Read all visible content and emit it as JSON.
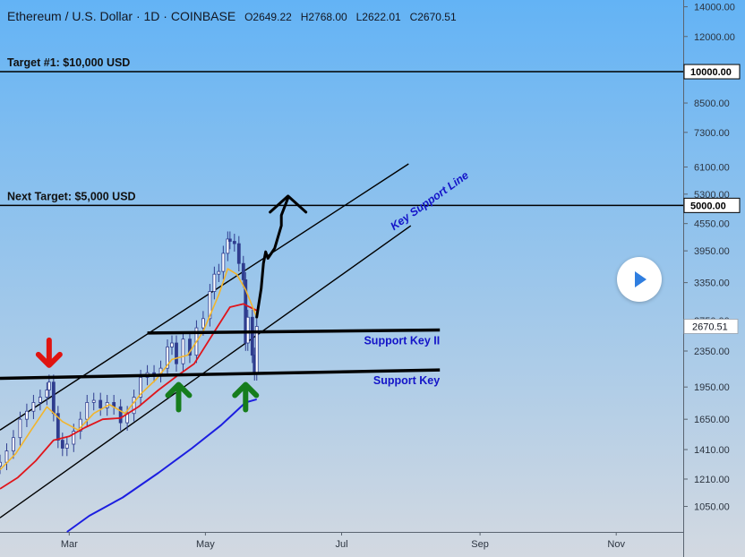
{
  "header": {
    "symbol": "Ethereum / U.S. Dollar · 1D · COINBASE",
    "open": "O2649.22",
    "high": "H2768.00",
    "low": "L2622.01",
    "close": "C2670.51"
  },
  "colors": {
    "background_top": "#63b3f5",
    "background_bottom": "#d3d9e1",
    "candle": "#2f3d8f",
    "candle_light": "#ffffff",
    "ma_fast": "#f2b52c",
    "ma_mid": "#e0151b",
    "ma_slow": "#1c1ee0",
    "annotation_blue": "#1414c8",
    "arrow_red": "#e01410",
    "arrow_green": "#167d1c",
    "price_tag": "#ffffff"
  },
  "chart_data": {
    "type": "line",
    "y_scale": "log",
    "ylim": [
      920,
      14500
    ],
    "x_range": [
      "2021-01-29",
      "2021-12-01"
    ],
    "y_ticks": [
      "14000.00",
      "12000.00",
      "8500.00",
      "7300.00",
      "6100.00",
      "5300.00",
      "4550.00",
      "3950.00",
      "3350.00",
      "2750.00",
      "2350.00",
      "1950.00",
      "1650.00",
      "1410.00",
      "1210.00",
      "1050.00"
    ],
    "x_ticks": [
      {
        "label": "Mar",
        "date": "2021-03-01"
      },
      {
        "label": "May",
        "date": "2021-05-01"
      },
      {
        "label": "Jul",
        "date": "2021-07-01"
      },
      {
        "label": "Sep",
        "date": "2021-09-01"
      },
      {
        "label": "Nov",
        "date": "2021-11-01"
      }
    ],
    "last_price": "2670.51",
    "horizontal_levels": [
      {
        "value": 10000,
        "label": "10000.00",
        "annotation": "Target #1: $10,000 USD"
      },
      {
        "value": 5000,
        "label": "5000.00",
        "annotation": "Next Target: $5,000 USD"
      }
    ],
    "support_lines": [
      {
        "label": "Support Key II",
        "start": {
          "date": "2021-04-05",
          "value": 2580
        },
        "end": {
          "date": "2021-08-14",
          "value": 2620
        }
      },
      {
        "label": "Support Key",
        "start": {
          "date": "2021-01-29",
          "value": 2040
        },
        "end": {
          "date": "2021-08-14",
          "value": 2130
        }
      }
    ],
    "channel": {
      "upper": {
        "start": {
          "date": "2021-01-29",
          "value": 1560
        },
        "end": {
          "date": "2021-07-31",
          "value": 6200
        }
      },
      "lower": {
        "start": {
          "date": "2021-01-29",
          "value": 990
        },
        "end": {
          "date": "2021-08-01",
          "value": 4500
        }
      },
      "lower_label": "Key Support Line"
    },
    "projection_path": [
      {
        "date": "2021-05-24",
        "value": 2800
      },
      {
        "date": "2021-05-26",
        "value": 3250
      },
      {
        "date": "2021-05-27",
        "value": 3700
      },
      {
        "date": "2021-05-28",
        "value": 3930
      },
      {
        "date": "2021-05-29",
        "value": 3800
      },
      {
        "date": "2021-06-01",
        "value": 4000
      },
      {
        "date": "2021-06-04",
        "value": 4500
      },
      {
        "date": "2021-06-04",
        "value": 4750
      },
      {
        "date": "2021-06-07",
        "value": 5200
      }
    ],
    "candles": [
      {
        "date": "2021-01-29",
        "value": 1320
      },
      {
        "date": "2021-02-01",
        "value": 1400
      },
      {
        "date": "2021-02-04",
        "value": 1500
      },
      {
        "date": "2021-02-07",
        "value": 1650
      },
      {
        "date": "2021-02-10",
        "value": 1720
      },
      {
        "date": "2021-02-13",
        "value": 1800
      },
      {
        "date": "2021-02-16",
        "value": 1850
      },
      {
        "date": "2021-02-19",
        "value": 1920
      },
      {
        "date": "2021-02-20",
        "value": 2000
      },
      {
        "date": "2021-02-22",
        "value": 1700
      },
      {
        "date": "2021-02-24",
        "value": 1480
      },
      {
        "date": "2021-02-26",
        "value": 1420
      },
      {
        "date": "2021-02-28",
        "value": 1450
      },
      {
        "date": "2021-03-03",
        "value": 1550
      },
      {
        "date": "2021-03-06",
        "value": 1650
      },
      {
        "date": "2021-03-09",
        "value": 1800
      },
      {
        "date": "2021-03-12",
        "value": 1820
      },
      {
        "date": "2021-03-15",
        "value": 1750
      },
      {
        "date": "2021-03-18",
        "value": 1800
      },
      {
        "date": "2021-03-21",
        "value": 1760
      },
      {
        "date": "2021-03-24",
        "value": 1620
      },
      {
        "date": "2021-03-27",
        "value": 1700
      },
      {
        "date": "2021-03-30",
        "value": 1850
      },
      {
        "date": "2021-04-02",
        "value": 2050
      },
      {
        "date": "2021-04-05",
        "value": 2100
      },
      {
        "date": "2021-04-08",
        "value": 2080
      },
      {
        "date": "2021-04-11",
        "value": 2150
      },
      {
        "date": "2021-04-14",
        "value": 2400
      },
      {
        "date": "2021-04-16",
        "value": 2450
      },
      {
        "date": "2021-04-18",
        "value": 2200
      },
      {
        "date": "2021-04-21",
        "value": 2500
      },
      {
        "date": "2021-04-24",
        "value": 2300
      },
      {
        "date": "2021-04-27",
        "value": 2650
      },
      {
        "date": "2021-04-30",
        "value": 2780
      },
      {
        "date": "2021-05-03",
        "value": 3200
      },
      {
        "date": "2021-05-05",
        "value": 3500
      },
      {
        "date": "2021-05-07",
        "value": 3550
      },
      {
        "date": "2021-05-09",
        "value": 3900
      },
      {
        "date": "2021-05-11",
        "value": 4200
      },
      {
        "date": "2021-05-12",
        "value": 4150
      },
      {
        "date": "2021-05-14",
        "value": 4100
      },
      {
        "date": "2021-05-16",
        "value": 3700
      },
      {
        "date": "2021-05-18",
        "value": 3400
      },
      {
        "date": "2021-05-19",
        "value": 2450
      },
      {
        "date": "2021-05-20",
        "value": 2800
      },
      {
        "date": "2021-05-22",
        "value": 2300
      },
      {
        "date": "2021-05-23",
        "value": 2100
      },
      {
        "date": "2021-05-24",
        "value": 2670
      }
    ],
    "ma_fast": [
      {
        "date": "2021-01-29",
        "value": 1270
      },
      {
        "date": "2021-02-05",
        "value": 1380
      },
      {
        "date": "2021-02-12",
        "value": 1560
      },
      {
        "date": "2021-02-19",
        "value": 1760
      },
      {
        "date": "2021-02-26",
        "value": 1630
      },
      {
        "date": "2021-03-05",
        "value": 1560
      },
      {
        "date": "2021-03-12",
        "value": 1700
      },
      {
        "date": "2021-03-19",
        "value": 1780
      },
      {
        "date": "2021-03-26",
        "value": 1700
      },
      {
        "date": "2021-04-02",
        "value": 1880
      },
      {
        "date": "2021-04-09",
        "value": 2030
      },
      {
        "date": "2021-04-16",
        "value": 2250
      },
      {
        "date": "2021-04-23",
        "value": 2300
      },
      {
        "date": "2021-04-30",
        "value": 2600
      },
      {
        "date": "2021-05-07",
        "value": 3150
      },
      {
        "date": "2021-05-11",
        "value": 3600
      },
      {
        "date": "2021-05-15",
        "value": 3500
      },
      {
        "date": "2021-05-19",
        "value": 3230
      },
      {
        "date": "2021-05-24",
        "value": 2800
      }
    ],
    "ma_mid": [
      {
        "date": "2021-01-29",
        "value": 1150
      },
      {
        "date": "2021-02-06",
        "value": 1220
      },
      {
        "date": "2021-02-14",
        "value": 1330
      },
      {
        "date": "2021-02-22",
        "value": 1480
      },
      {
        "date": "2021-03-01",
        "value": 1510
      },
      {
        "date": "2021-03-08",
        "value": 1580
      },
      {
        "date": "2021-03-16",
        "value": 1650
      },
      {
        "date": "2021-03-24",
        "value": 1660
      },
      {
        "date": "2021-04-01",
        "value": 1760
      },
      {
        "date": "2021-04-10",
        "value": 1920
      },
      {
        "date": "2021-04-18",
        "value": 2060
      },
      {
        "date": "2021-04-26",
        "value": 2200
      },
      {
        "date": "2021-05-04",
        "value": 2550
      },
      {
        "date": "2021-05-12",
        "value": 2950
      },
      {
        "date": "2021-05-18",
        "value": 3000
      },
      {
        "date": "2021-05-24",
        "value": 2900
      }
    ],
    "ma_slow": [
      {
        "date": "2021-02-28",
        "value": 920
      },
      {
        "date": "2021-03-10",
        "value": 1000
      },
      {
        "date": "2021-03-25",
        "value": 1100
      },
      {
        "date": "2021-04-10",
        "value": 1250
      },
      {
        "date": "2021-04-25",
        "value": 1420
      },
      {
        "date": "2021-05-08",
        "value": 1600
      },
      {
        "date": "2021-05-19",
        "value": 1800
      },
      {
        "date": "2021-05-24",
        "value": 1830
      }
    ],
    "signal_arrows": [
      {
        "direction": "down",
        "color": "red",
        "date": "2021-02-20",
        "value": 2330
      },
      {
        "direction": "up",
        "color": "green",
        "date": "2021-04-19",
        "value": 1850
      },
      {
        "direction": "up",
        "color": "green",
        "date": "2021-05-19",
        "value": 1850
      }
    ]
  }
}
